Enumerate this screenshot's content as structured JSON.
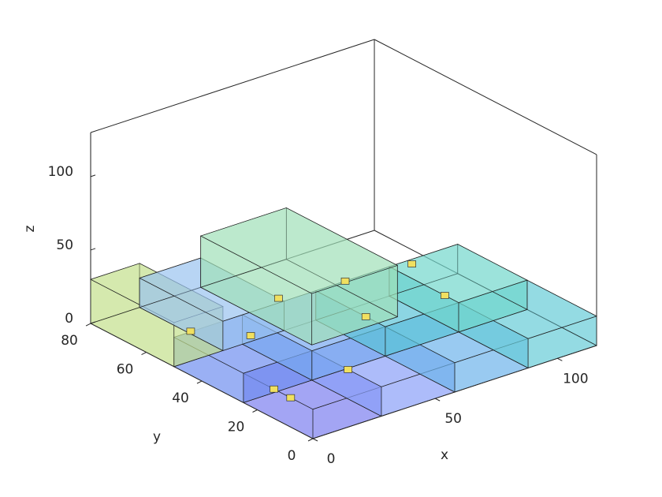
{
  "chart_data": {
    "type": "box3d",
    "xlabel": "x",
    "ylabel": "y",
    "zlabel": "z",
    "xlim": [
      0,
      116
    ],
    "ylim": [
      0,
      80
    ],
    "zlim": [
      0,
      130
    ],
    "xticks": [
      0,
      50,
      100
    ],
    "yticks": [
      0,
      20,
      40,
      60,
      80
    ],
    "zticks": [
      0,
      50,
      100
    ],
    "boxes": [
      {
        "x": [
          0,
          28
        ],
        "y": [
          0,
          25
        ],
        "z": [
          0,
          20
        ],
        "color": "#7c7ef0"
      },
      {
        "x": [
          28,
          58
        ],
        "y": [
          0,
          25
        ],
        "z": [
          0,
          20
        ],
        "color": "#8aa0f8"
      },
      {
        "x": [
          58,
          88
        ],
        "y": [
          0,
          25
        ],
        "z": [
          0,
          20
        ],
        "color": "#6cb4ec"
      },
      {
        "x": [
          88,
          116
        ],
        "y": [
          0,
          25
        ],
        "z": [
          0,
          20
        ],
        "color": "#66cdd8"
      },
      {
        "x": [
          0,
          28
        ],
        "y": [
          25,
          50
        ],
        "z": [
          0,
          20
        ],
        "color": "#6e8ff0"
      },
      {
        "x": [
          28,
          58
        ],
        "y": [
          25,
          50
        ],
        "z": [
          0,
          20
        ],
        "color": "#78a8f0"
      },
      {
        "x": [
          58,
          88
        ],
        "y": [
          25,
          50
        ],
        "z": [
          0,
          20
        ],
        "color": "#5cc4d8"
      },
      {
        "x": [
          88,
          116
        ],
        "y": [
          25,
          50
        ],
        "z": [
          0,
          20
        ],
        "color": "#70d8cc"
      },
      {
        "x": [
          0,
          20
        ],
        "y": [
          50,
          80
        ],
        "z": [
          0,
          30
        ],
        "color": "#c4e08c"
      },
      {
        "x": [
          20,
          45
        ],
        "y": [
          50,
          80
        ],
        "z": [
          0,
          20
        ],
        "color": "#98c4f0"
      },
      {
        "x": [
          45,
          80
        ],
        "y": [
          40,
          80
        ],
        "z": [
          0,
          35
        ],
        "color": "#a0e0b8"
      }
    ],
    "points": {
      "x": [
        0,
        0,
        28,
        58,
        88,
        95,
        20,
        45,
        70,
        0
      ],
      "y": [
        8,
        14,
        12,
        32,
        30,
        48,
        40,
        52,
        50,
        44
      ],
      "z": [
        20,
        20,
        20,
        20,
        20,
        20,
        20,
        20,
        20,
        30
      ],
      "color": "#f0e060"
    }
  }
}
